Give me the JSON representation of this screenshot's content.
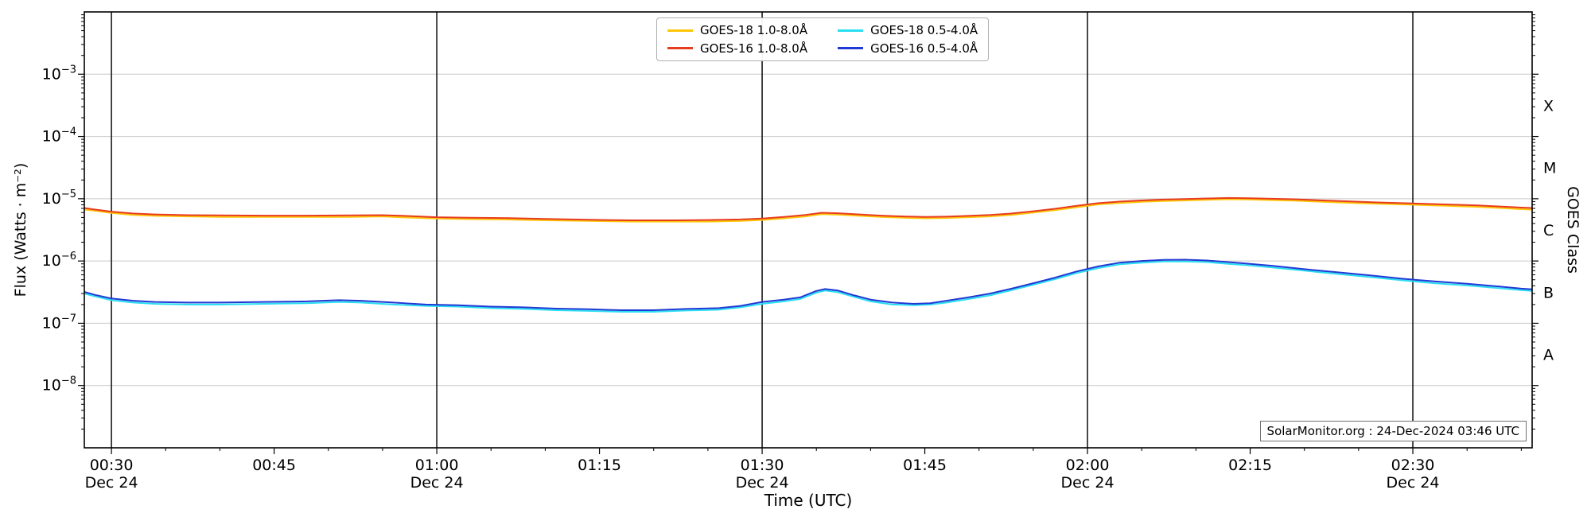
{
  "chart_data": {
    "type": "line",
    "x_title": "Time (UTC)",
    "y_left_title": "Flux (Watts · m⁻²)",
    "y_right_title": "GOES Class",
    "annotation": "SolarMonitor.org : 24-Dec-2024 03:46 UTC",
    "legend_position": "top-center",
    "grid": "horizontal-decades",
    "x_axis": {
      "unit": "minutes after 00:00 UTC",
      "range_minutes": [
        27.5,
        161
      ],
      "minor_tick_minutes": 5,
      "ticks": [
        {
          "t": 30,
          "label": "00:30",
          "sub": "Dec 24",
          "vline": true
        },
        {
          "t": 45,
          "label": "00:45"
        },
        {
          "t": 60,
          "label": "01:00",
          "sub": "Dec 24",
          "vline": true
        },
        {
          "t": 75,
          "label": "01:15"
        },
        {
          "t": 90,
          "label": "01:30",
          "sub": "Dec 24",
          "vline": true
        },
        {
          "t": 105,
          "label": "01:45"
        },
        {
          "t": 120,
          "label": "02:00",
          "sub": "Dec 24",
          "vline": true
        },
        {
          "t": 135,
          "label": "02:15"
        },
        {
          "t": 150,
          "label": "02:30",
          "sub": "Dec 24",
          "vline": true
        }
      ]
    },
    "y_axis": {
      "scale": "log10",
      "log10_range": [
        -9,
        -2
      ],
      "tick_exponents": [
        -3,
        -4,
        -5,
        -6,
        -7,
        -8
      ]
    },
    "goes_classes": [
      {
        "label": "X",
        "log_center": -3.5
      },
      {
        "label": "M",
        "log_center": -4.5
      },
      {
        "label": "C",
        "log_center": -5.5
      },
      {
        "label": "B",
        "log_center": -6.5
      },
      {
        "label": "A",
        "log_center": -7.5
      }
    ],
    "colors": {
      "grid": "#c9c9c9",
      "frame": "#000000",
      "day_line": "#1a1a1a",
      "background": "#ffffff"
    },
    "series": [
      {
        "id": "goes18-long",
        "name": "GOES-18 1.0-8.0Å",
        "color": "#fdc609",
        "points": [
          [
            27.5,
            6.7e-06
          ],
          [
            28.5,
            6.4e-06
          ],
          [
            30,
            5.9e-06
          ],
          [
            32,
            5.5e-06
          ],
          [
            34,
            5.3e-06
          ],
          [
            37,
            5.2e-06
          ],
          [
            40,
            5.1e-06
          ],
          [
            44,
            5.1e-06
          ],
          [
            48,
            5.1e-06
          ],
          [
            52,
            5.1e-06
          ],
          [
            55,
            5.2e-06
          ],
          [
            57,
            5e-06
          ],
          [
            60,
            4.8e-06
          ],
          [
            63,
            4.7e-06
          ],
          [
            66,
            4.65e-06
          ],
          [
            70,
            4.5e-06
          ],
          [
            74,
            4.4e-06
          ],
          [
            78,
            4.3e-06
          ],
          [
            82,
            4.3e-06
          ],
          [
            85,
            4.3e-06
          ],
          [
            88,
            4.4e-06
          ],
          [
            90,
            4.55e-06
          ],
          [
            92,
            4.85e-06
          ],
          [
            94,
            5.2e-06
          ],
          [
            95.5,
            5.65e-06
          ],
          [
            97,
            5.55e-06
          ],
          [
            99,
            5.3e-06
          ],
          [
            101,
            5.1e-06
          ],
          [
            103,
            4.95e-06
          ],
          [
            105,
            4.85e-06
          ],
          [
            107,
            4.9e-06
          ],
          [
            109,
            5.05e-06
          ],
          [
            111,
            5.2e-06
          ],
          [
            113,
            5.5e-06
          ],
          [
            115,
            6e-06
          ],
          [
            117,
            6.55e-06
          ],
          [
            119,
            7.3e-06
          ],
          [
            121,
            8.1e-06
          ],
          [
            123,
            8.55e-06
          ],
          [
            125,
            8.9e-06
          ],
          [
            127,
            9.2e-06
          ],
          [
            129,
            9.4e-06
          ],
          [
            131,
            9.6e-06
          ],
          [
            133,
            9.8e-06
          ],
          [
            135,
            9.7e-06
          ],
          [
            137,
            9.5e-06
          ],
          [
            139,
            9.3e-06
          ],
          [
            141,
            9e-06
          ],
          [
            144,
            8.6e-06
          ],
          [
            147,
            8.3e-06
          ],
          [
            150,
            8e-06
          ],
          [
            153,
            7.7e-06
          ],
          [
            156,
            7.4e-06
          ],
          [
            158,
            7.1e-06
          ],
          [
            160,
            6.8e-06
          ],
          [
            161,
            6.7e-06
          ]
        ]
      },
      {
        "id": "goes16-long",
        "name": "GOES-16 1.0-8.0Å",
        "color": "#e73c1e",
        "points": [
          [
            27.5,
            7.1e-06
          ],
          [
            28.5,
            6.7e-06
          ],
          [
            30,
            6.2e-06
          ],
          [
            32,
            5.8e-06
          ],
          [
            34,
            5.6e-06
          ],
          [
            37,
            5.45e-06
          ],
          [
            40,
            5.4e-06
          ],
          [
            44,
            5.35e-06
          ],
          [
            48,
            5.35e-06
          ],
          [
            52,
            5.4e-06
          ],
          [
            55,
            5.45e-06
          ],
          [
            57,
            5.3e-06
          ],
          [
            60,
            5.05e-06
          ],
          [
            63,
            4.95e-06
          ],
          [
            66,
            4.9e-06
          ],
          [
            70,
            4.75e-06
          ],
          [
            74,
            4.6e-06
          ],
          [
            78,
            4.5e-06
          ],
          [
            82,
            4.5e-06
          ],
          [
            85,
            4.55e-06
          ],
          [
            88,
            4.65e-06
          ],
          [
            90,
            4.8e-06
          ],
          [
            92,
            5.1e-06
          ],
          [
            94,
            5.5e-06
          ],
          [
            95.5,
            5.95e-06
          ],
          [
            97,
            5.85e-06
          ],
          [
            99,
            5.6e-06
          ],
          [
            101,
            5.35e-06
          ],
          [
            103,
            5.2e-06
          ],
          [
            105,
            5.1e-06
          ],
          [
            107,
            5.15e-06
          ],
          [
            109,
            5.3e-06
          ],
          [
            111,
            5.5e-06
          ],
          [
            113,
            5.8e-06
          ],
          [
            115,
            6.3e-06
          ],
          [
            117,
            6.9e-06
          ],
          [
            119,
            7.7e-06
          ],
          [
            121,
            8.5e-06
          ],
          [
            123,
            9e-06
          ],
          [
            125,
            9.4e-06
          ],
          [
            127,
            9.7e-06
          ],
          [
            129,
            9.9e-06
          ],
          [
            131,
            1.01e-05
          ],
          [
            133,
            1.03e-05
          ],
          [
            135,
            1.02e-05
          ],
          [
            137,
            1e-05
          ],
          [
            139,
            9.8e-06
          ],
          [
            141,
            9.5e-06
          ],
          [
            144,
            9.1e-06
          ],
          [
            147,
            8.7e-06
          ],
          [
            150,
            8.4e-06
          ],
          [
            153,
            8.1e-06
          ],
          [
            156,
            7.8e-06
          ],
          [
            158,
            7.5e-06
          ],
          [
            160,
            7.2e-06
          ],
          [
            161,
            7.1e-06
          ]
        ]
      },
      {
        "id": "goes18-short",
        "name": "GOES-18 0.5-4.0Å",
        "color": "#2adef2",
        "points": [
          [
            27.5,
            3e-07
          ],
          [
            28.5,
            2.7e-07
          ],
          [
            30,
            2.35e-07
          ],
          [
            32,
            2.15e-07
          ],
          [
            34,
            2.05e-07
          ],
          [
            37,
            2e-07
          ],
          [
            40,
            2e-07
          ],
          [
            44,
            2.05e-07
          ],
          [
            48,
            2.1e-07
          ],
          [
            51,
            2.2e-07
          ],
          [
            53,
            2.15e-07
          ],
          [
            56,
            2e-07
          ],
          [
            59,
            1.9e-07
          ],
          [
            62,
            1.85e-07
          ],
          [
            65,
            1.75e-07
          ],
          [
            68,
            1.7e-07
          ],
          [
            71,
            1.62e-07
          ],
          [
            74,
            1.58e-07
          ],
          [
            77,
            1.53e-07
          ],
          [
            80,
            1.53e-07
          ],
          [
            83,
            1.6e-07
          ],
          [
            86,
            1.65e-07
          ],
          [
            88,
            1.8e-07
          ],
          [
            90,
            2.05e-07
          ],
          [
            92,
            2.25e-07
          ],
          [
            93.5,
            2.45e-07
          ],
          [
            95,
            3.1e-07
          ],
          [
            95.8,
            3.35e-07
          ],
          [
            97,
            3.15e-07
          ],
          [
            98.5,
            2.65e-07
          ],
          [
            100,
            2.25e-07
          ],
          [
            102,
            2e-07
          ],
          [
            104,
            1.95e-07
          ],
          [
            105.5,
            2e-07
          ],
          [
            107,
            2.15e-07
          ],
          [
            109,
            2.45e-07
          ],
          [
            111,
            2.8e-07
          ],
          [
            113,
            3.4e-07
          ],
          [
            115,
            4.15e-07
          ],
          [
            117,
            5.1e-07
          ],
          [
            119,
            6.4e-07
          ],
          [
            121,
            7.7e-07
          ],
          [
            123,
            8.85e-07
          ],
          [
            125,
            9.4e-07
          ],
          [
            127,
            9.8e-07
          ],
          [
            129,
            9.85e-07
          ],
          [
            131,
            9.6e-07
          ],
          [
            133,
            9e-07
          ],
          [
            135,
            8.5e-07
          ],
          [
            137,
            7.9e-07
          ],
          [
            140,
            7e-07
          ],
          [
            143,
            6.2e-07
          ],
          [
            146,
            5.55e-07
          ],
          [
            149,
            4.9e-07
          ],
          [
            152,
            4.4e-07
          ],
          [
            155,
            4.05e-07
          ],
          [
            158,
            3.65e-07
          ],
          [
            160,
            3.4e-07
          ],
          [
            161,
            3.3e-07
          ]
        ]
      },
      {
        "id": "goes16-short",
        "name": "GOES-16 0.5-4.0Å",
        "color": "#2139d4",
        "points": [
          [
            27.5,
            3.2e-07
          ],
          [
            28.5,
            2.85e-07
          ],
          [
            30,
            2.5e-07
          ],
          [
            32,
            2.3e-07
          ],
          [
            34,
            2.2e-07
          ],
          [
            37,
            2.15e-07
          ],
          [
            40,
            2.15e-07
          ],
          [
            44,
            2.2e-07
          ],
          [
            48,
            2.25e-07
          ],
          [
            51,
            2.35e-07
          ],
          [
            53,
            2.3e-07
          ],
          [
            56,
            2.15e-07
          ],
          [
            59,
            2e-07
          ],
          [
            62,
            1.95e-07
          ],
          [
            65,
            1.85e-07
          ],
          [
            68,
            1.8e-07
          ],
          [
            71,
            1.72e-07
          ],
          [
            74,
            1.68e-07
          ],
          [
            77,
            1.62e-07
          ],
          [
            80,
            1.62e-07
          ],
          [
            83,
            1.7e-07
          ],
          [
            86,
            1.75e-07
          ],
          [
            88,
            1.9e-07
          ],
          [
            90,
            2.2e-07
          ],
          [
            92,
            2.4e-07
          ],
          [
            93.5,
            2.6e-07
          ],
          [
            95,
            3.3e-07
          ],
          [
            95.8,
            3.55e-07
          ],
          [
            97,
            3.35e-07
          ],
          [
            98.5,
            2.8e-07
          ],
          [
            100,
            2.4e-07
          ],
          [
            102,
            2.15e-07
          ],
          [
            104,
            2.05e-07
          ],
          [
            105.5,
            2.1e-07
          ],
          [
            107,
            2.3e-07
          ],
          [
            109,
            2.6e-07
          ],
          [
            111,
            3e-07
          ],
          [
            113,
            3.6e-07
          ],
          [
            115,
            4.4e-07
          ],
          [
            117,
            5.4e-07
          ],
          [
            119,
            6.8e-07
          ],
          [
            121,
            8.2e-07
          ],
          [
            123,
            9.4e-07
          ],
          [
            125,
            1e-06
          ],
          [
            127,
            1.04e-06
          ],
          [
            129,
            1.05e-06
          ],
          [
            131,
            1.02e-06
          ],
          [
            133,
            9.6e-07
          ],
          [
            135,
            9e-07
          ],
          [
            137,
            8.4e-07
          ],
          [
            140,
            7.4e-07
          ],
          [
            143,
            6.6e-07
          ],
          [
            146,
            5.9e-07
          ],
          [
            149,
            5.2e-07
          ],
          [
            152,
            4.7e-07
          ],
          [
            155,
            4.3e-07
          ],
          [
            158,
            3.9e-07
          ],
          [
            160,
            3.6e-07
          ],
          [
            161,
            3.5e-07
          ]
        ]
      }
    ]
  }
}
